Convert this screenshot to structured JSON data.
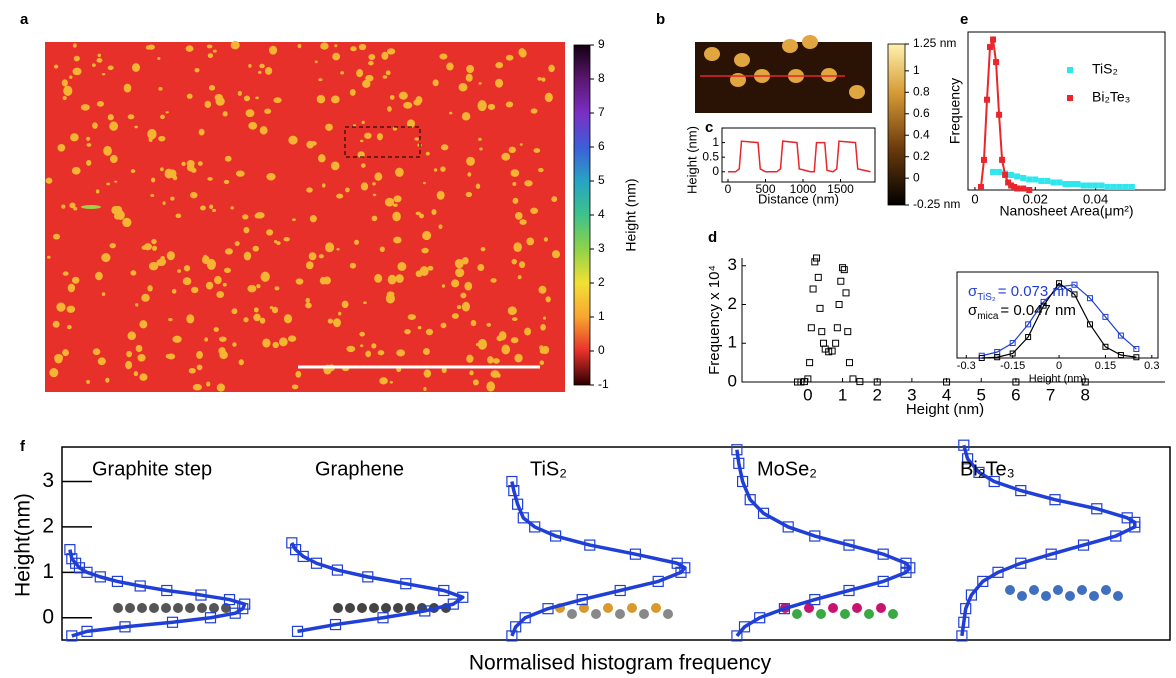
{
  "chart_data": [
    {
      "panel": "a",
      "type": "image",
      "colorbar_label": "Height (nm)",
      "clim": [
        -1,
        9
      ],
      "cticks": [
        -1,
        0,
        1,
        2,
        3,
        4,
        5,
        6,
        7,
        8,
        9
      ]
    },
    {
      "panel": "b",
      "type": "image",
      "clim": [
        -0.25,
        1.25
      ],
      "cticks": [
        {
          "value": -0.25,
          "label": "-0.25 nm"
        },
        0,
        0.2,
        0.4,
        0.6,
        0.8,
        1,
        {
          "value": 1.25,
          "label": "1.25 nm"
        }
      ]
    },
    {
      "panel": "c",
      "type": "line",
      "xlabel": "Distance (nm)",
      "ylabel": "Height (nm)",
      "color": "#e8262b",
      "x": [
        0,
        100,
        150,
        180,
        400,
        430,
        500,
        650,
        700,
        730,
        920,
        950,
        1100,
        1150,
        1180,
        1290,
        1320,
        1400,
        1450,
        1480,
        1700,
        1730,
        1900
      ],
      "values": [
        0,
        0,
        0.1,
        1.05,
        1.0,
        0.1,
        0,
        0,
        0.1,
        1.05,
        1.0,
        0.1,
        0,
        0,
        1.0,
        1.0,
        0.05,
        0,
        0.1,
        1.05,
        1.0,
        0.1,
        0
      ],
      "xlim": [
        -80,
        1960
      ],
      "ylim": [
        -0.35,
        1.5
      ],
      "xticks": [
        0,
        500,
        1000,
        1500
      ],
      "yticks": [
        0,
        0.5,
        1
      ]
    },
    {
      "panel": "d",
      "type": "scatter",
      "xlabel": "Height (nm)",
      "ylabel": "Frequency x 10⁴",
      "color": "#000000",
      "x": [
        -0.3,
        -0.2,
        -0.1,
        0,
        0.05,
        0.1,
        0.15,
        0.2,
        0.25,
        0.3,
        0.35,
        0.4,
        0.45,
        0.5,
        0.6,
        0.7,
        0.8,
        0.85,
        0.9,
        0.95,
        1.0,
        1.05,
        1.1,
        1.15,
        1.2,
        1.3,
        1.5,
        2,
        4,
        6,
        8
      ],
      "values": [
        0,
        0,
        0.01,
        0.08,
        0.5,
        1.4,
        2.4,
        3.1,
        3.2,
        2.7,
        1.9,
        1.3,
        1.0,
        0.85,
        0.78,
        0.8,
        1.0,
        1.4,
        2.0,
        2.6,
        2.95,
        2.9,
        2.3,
        1.3,
        0.5,
        0.08,
        0.01,
        0,
        0,
        0,
        0
      ],
      "xlim": [
        -1.9,
        10.3
      ],
      "ylim": [
        0,
        3.2
      ],
      "xticks": [
        0,
        1,
        2,
        3,
        4,
        5,
        6,
        7,
        8
      ],
      "yticks": [
        0,
        1,
        2,
        3
      ],
      "inset": {
        "type": "line",
        "xlabel": "Height (nm)",
        "xlim": [
          -0.33,
          0.32
        ],
        "ylim": [
          0,
          1.15
        ],
        "xticks": [
          -0.3,
          -0.15,
          0,
          0.15,
          0.3
        ],
        "x": [
          -0.25,
          -0.2,
          -0.15,
          -0.1,
          -0.05,
          0,
          0.05,
          0.1,
          0.15,
          0.2,
          0.25
        ],
        "series": [
          {
            "color": "#1f3fd6",
            "values": [
              0.03,
              0.08,
              0.2,
              0.45,
              0.75,
              0.95,
              0.98,
              0.8,
              0.55,
              0.3,
              0.12
            ]
          },
          {
            "color": "#000000",
            "values": [
              0.0,
              0.01,
              0.06,
              0.28,
              0.7,
              1.0,
              0.85,
              0.45,
              0.15,
              0.04,
              0.01
            ]
          }
        ],
        "annotations": [
          {
            "symbol": "σ",
            "subscript": "TiS₂",
            "text": "= 0.073 nm",
            "color": "#1f3fd6"
          },
          {
            "symbol": "σ",
            "subscript": "mica",
            "text": "= 0.047 nm",
            "color": "#000000"
          }
        ]
      }
    },
    {
      "panel": "e",
      "type": "scatter",
      "xlabel": "Nanosheet Area(μm²)",
      "ylabel": "Frequency",
      "legend": "upper right",
      "xlim": [
        -0.0023,
        0.063
      ],
      "ylim": [
        0,
        1.05
      ],
      "xticks": [
        0,
        0.02,
        0.04
      ],
      "series": [
        {
          "name": "TiS₂",
          "color": "#2ee6ee",
          "line": false,
          "x": [
            0.006,
            0.008,
            0.01,
            0.012,
            0.014,
            0.016,
            0.018,
            0.02,
            0.022,
            0.024,
            0.026,
            0.028,
            0.03,
            0.032,
            0.034,
            0.036,
            0.038,
            0.04,
            0.042,
            0.044,
            0.046,
            0.048,
            0.05,
            0.052
          ],
          "values": [
            0.12,
            0.12,
            0.11,
            0.1,
            0.09,
            0.08,
            0.07,
            0.07,
            0.06,
            0.06,
            0.05,
            0.05,
            0.04,
            0.04,
            0.04,
            0.03,
            0.03,
            0.03,
            0.03,
            0.02,
            0.02,
            0.02,
            0.02,
            0.02
          ]
        },
        {
          "name": "Bi₂Te₃",
          "color": "#e8262b",
          "line": true,
          "x": [
            0.002,
            0.003,
            0.004,
            0.005,
            0.006,
            0.007,
            0.008,
            0.009,
            0.01,
            0.011,
            0.012,
            0.013,
            0.014,
            0.016,
            0.018
          ],
          "values": [
            0.02,
            0.2,
            0.6,
            0.95,
            1.0,
            0.85,
            0.5,
            0.2,
            0.1,
            0.05,
            0.03,
            0.02,
            0.01,
            0.01,
            0
          ]
        }
      ]
    },
    {
      "panel": "f",
      "type": "profile",
      "ylabel": "Height(nm)",
      "xlabel": "Normalised histogram frequency",
      "ylim": [
        -0.49,
        3.76
      ],
      "yticks": [
        0,
        1,
        2,
        3
      ],
      "series": [
        {
          "name": "Graphite step",
          "color": "#1f3fd6",
          "x": [
            0.02,
            0.1,
            0.3,
            0.55,
            0.75,
            0.88,
            0.92,
            0.93,
            0.85,
            0.7,
            0.52,
            0.38,
            0.26,
            0.17,
            0.1,
            0.06,
            0.04,
            0.02,
            0.01
          ],
          "values": [
            -0.4,
            -0.3,
            -0.2,
            -0.1,
            0,
            0.1,
            0.2,
            0.3,
            0.4,
            0.5,
            0.6,
            0.7,
            0.8,
            0.9,
            1.0,
            1.1,
            1.2,
            1.3,
            1.5
          ]
        },
        {
          "name": "Graphene",
          "color": "#1f3fd6",
          "x": [
            0.05,
            0.25,
            0.5,
            0.72,
            0.87,
            0.92,
            0.82,
            0.62,
            0.42,
            0.26,
            0.15,
            0.08,
            0.04,
            0.02
          ],
          "values": [
            -0.3,
            -0.15,
            0,
            0.15,
            0.3,
            0.45,
            0.6,
            0.75,
            0.9,
            1.05,
            1.2,
            1.35,
            1.5,
            1.65
          ]
        },
        {
          "name": "TiS₂",
          "color": "#1f3fd6",
          "x": [
            0.01,
            0.03,
            0.08,
            0.2,
            0.38,
            0.58,
            0.78,
            0.9,
            0.92,
            0.88,
            0.66,
            0.42,
            0.24,
            0.13,
            0.07,
            0.04,
            0.02,
            0.01
          ],
          "values": [
            -0.4,
            -0.2,
            0,
            0.2,
            0.4,
            0.6,
            0.8,
            1.0,
            1.1,
            1.2,
            1.4,
            1.6,
            1.8,
            2.0,
            2.2,
            2.5,
            2.8,
            3.0
          ]
        },
        {
          "name": "MoSe₂",
          "color": "#1f3fd6",
          "x": [
            0.01,
            0.05,
            0.13,
            0.26,
            0.42,
            0.6,
            0.78,
            0.9,
            0.92,
            0.9,
            0.78,
            0.6,
            0.42,
            0.28,
            0.15,
            0.08,
            0.04,
            0.02,
            0.01
          ],
          "values": [
            -0.4,
            -0.2,
            0,
            0.2,
            0.4,
            0.6,
            0.8,
            1.0,
            1.1,
            1.2,
            1.4,
            1.6,
            1.8,
            2.0,
            2.3,
            2.6,
            3.0,
            3.4,
            3.7
          ]
        },
        {
          "name": "Bi₂Te₃",
          "color": "#1f3fd6",
          "x": [
            0.01,
            0.02,
            0.03,
            0.06,
            0.12,
            0.2,
            0.32,
            0.48,
            0.65,
            0.82,
            0.92,
            0.92,
            0.88,
            0.72,
            0.5,
            0.32,
            0.18,
            0.1,
            0.04,
            0.02
          ],
          "values": [
            -0.4,
            -0.1,
            0.2,
            0.5,
            0.8,
            1.0,
            1.2,
            1.4,
            1.6,
            1.8,
            2.0,
            2.1,
            2.2,
            2.4,
            2.6,
            2.8,
            3.0,
            3.2,
            3.5,
            3.8
          ]
        }
      ]
    }
  ]
}
